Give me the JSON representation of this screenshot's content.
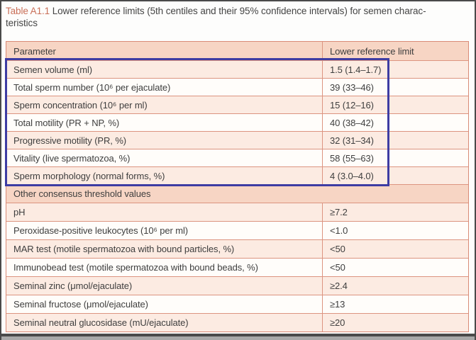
{
  "caption": {
    "label": "Table A1.1",
    "line1": "Lower reference limits (5th centiles and their 95% confidence intervals) for semen charac-",
    "line2": "teristics"
  },
  "table": {
    "col_parameter": "Parameter",
    "col_value": "Lower reference limit",
    "section1_rows": [
      {
        "param": "Semen volume (ml)",
        "value": "1.5 (1.4–1.7)"
      },
      {
        "param": "Total sperm number (10⁶ per ejaculate)",
        "value": "39 (33–46)"
      },
      {
        "param": "Sperm concentration (10⁶ per ml)",
        "value": "15 (12–16)"
      },
      {
        "param": "Total motility (PR + NP, %)",
        "value": "40 (38–42)"
      },
      {
        "param": "Progressive motility (PR, %)",
        "value": "32 (31–34)"
      },
      {
        "param": "Vitality (live spermatozoa, %)",
        "value": "58 (55–63)"
      },
      {
        "param": "Sperm morphology (normal forms, %)",
        "value": "4 (3.0–4.0)"
      }
    ],
    "section2_label": "Other consensus threshold values",
    "section2_rows": [
      {
        "param": "pH",
        "value": "≥7.2"
      },
      {
        "param": "Peroxidase-positive leukocytes (10⁶ per ml)",
        "value": "<1.0"
      },
      {
        "param": "MAR test (motile spermatozoa with bound particles, %)",
        "value": "<50"
      },
      {
        "param": "Immunobead test (motile spermatozoa with bound beads, %)",
        "value": "<50"
      },
      {
        "param": "Seminal zinc (μmol/ejaculate)",
        "value": "≥2.4"
      },
      {
        "param": "Seminal fructose (μmol/ejaculate)",
        "value": "≥13"
      },
      {
        "param": "Seminal neutral glucosidase (mU/ejaculate)",
        "value": "≥20"
      }
    ]
  },
  "colors": {
    "caption_accent": "#c96f58",
    "table_border": "#d98b77",
    "header_background": "#f7d5c4",
    "row_pink": "#fcebe2",
    "row_white": "#fffdfa",
    "highlight_box": "#3e3ca3",
    "text": "#3e3e3e",
    "scan_frame": "#4a4a4a"
  }
}
